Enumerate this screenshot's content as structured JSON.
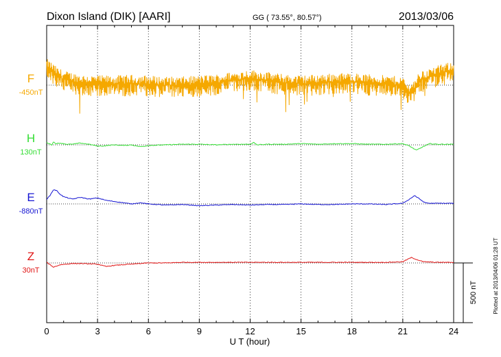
{
  "header": {
    "station": "Dixon Island (DIK)  [AARI]",
    "coords": "GG ( 73.55°,  80.57°)",
    "date": "2013/03/06"
  },
  "footer": {
    "plotted_note": "Plotted at 2013/04/06 01:28 UT"
  },
  "chart_data": {
    "type": "line",
    "title": "Dixon Island (DIK)  [AARI]",
    "xlabel": "U T (hour)",
    "xlim": [
      0,
      24
    ],
    "xticks": [
      0,
      3,
      6,
      9,
      12,
      15,
      18,
      21,
      24
    ],
    "scale_bar": {
      "label": "500 nT",
      "value_nT": 500
    },
    "grid": "vertical dotted every 3 hours; dotted baseline per component",
    "series": [
      {
        "name": "F",
        "baseline": "-450nT",
        "color": "#f5a800",
        "slot": 0,
        "noisy": true,
        "upper": 1.6,
        "lower": -2.4,
        "spikes": [
          [
            1.95,
            -5.3
          ],
          [
            4.5,
            -2.0
          ],
          [
            5.3,
            -1.9
          ],
          [
            11.6,
            -2.6
          ],
          [
            12.4,
            -3.2
          ],
          [
            14.1,
            -5.0
          ],
          [
            14.3,
            -3.7
          ],
          [
            15.2,
            -3.6
          ],
          [
            15.35,
            -3.1
          ],
          [
            16.9,
            -2.2
          ],
          [
            17.9,
            -3.1
          ],
          [
            20.9,
            -4.6
          ],
          [
            22.3,
            -2.0
          ]
        ],
        "x": [
          0,
          0.3,
          0.6,
          1,
          2,
          3,
          4,
          5,
          6,
          7,
          8,
          9,
          10,
          11,
          12,
          13,
          14,
          15,
          16,
          17,
          18,
          19,
          20,
          21,
          21.3,
          21.6,
          22,
          23,
          24
        ],
        "y": [
          150,
          120,
          80,
          50,
          20,
          10,
          10,
          15,
          10,
          0,
          0,
          10,
          20,
          40,
          60,
          40,
          20,
          10,
          20,
          30,
          30,
          20,
          10,
          0,
          -60,
          -40,
          40,
          90,
          130
        ]
      },
      {
        "name": "H",
        "baseline": "130nT",
        "color": "#33dd33",
        "slot": 1,
        "noisy": false,
        "x": [
          0,
          0.3,
          0.4,
          0.55,
          0.8,
          1,
          1.2,
          1.5,
          2,
          2.5,
          3,
          3.3,
          3.6,
          4,
          4.5,
          5,
          5.5,
          5.8,
          6,
          7,
          8,
          9,
          10,
          11,
          12,
          12.2,
          12.4,
          13,
          14,
          15,
          16,
          17,
          18,
          19,
          20,
          21,
          21.4,
          21.8,
          22.2,
          22.6,
          23,
          24
        ],
        "y": [
          20,
          0,
          25,
          10,
          15,
          10,
          5,
          5,
          15,
          5,
          -10,
          -10,
          -5,
          0,
          -5,
          0,
          -15,
          -10,
          -5,
          0,
          5,
          5,
          0,
          5,
          5,
          20,
          0,
          5,
          5,
          10,
          5,
          10,
          10,
          5,
          5,
          10,
          -10,
          -45,
          -15,
          10,
          5,
          5
        ]
      },
      {
        "name": "E",
        "baseline": "-880nT",
        "color": "#1414d2",
        "slot": 2,
        "noisy": false,
        "x": [
          0,
          0.2,
          0.4,
          0.6,
          0.8,
          1,
          1.5,
          2,
          2.5,
          3,
          3.5,
          4,
          4.5,
          5,
          5.5,
          6,
          7,
          8,
          9,
          10,
          11,
          12,
          13,
          14,
          15,
          16,
          17,
          18,
          19,
          20,
          21,
          21.4,
          21.7,
          22,
          22.3,
          22.6,
          23,
          24
        ],
        "y": [
          40,
          70,
          120,
          110,
          80,
          60,
          40,
          55,
          40,
          50,
          30,
          20,
          10,
          0,
          10,
          0,
          -10,
          -5,
          -15,
          -10,
          -5,
          -10,
          -5,
          -5,
          0,
          -5,
          -5,
          0,
          0,
          -5,
          5,
          40,
          70,
          40,
          10,
          5,
          5,
          5
        ]
      },
      {
        "name": "Z",
        "baseline": "30nT",
        "color": "#e01414",
        "slot": 3,
        "noisy": false,
        "x": [
          0,
          0.4,
          0.8,
          1.5,
          2,
          3,
          3.5,
          4,
          5,
          6,
          7,
          8,
          9,
          10,
          11,
          12,
          13,
          14,
          15,
          16,
          17,
          18,
          19,
          20,
          21,
          21.5,
          21.8,
          22.2,
          23,
          24
        ],
        "y": [
          5,
          -35,
          -15,
          -5,
          -5,
          -10,
          -30,
          -20,
          -10,
          0,
          0,
          5,
          5,
          5,
          5,
          5,
          5,
          5,
          5,
          5,
          5,
          5,
          5,
          5,
          10,
          45,
          30,
          10,
          5,
          5
        ]
      }
    ]
  }
}
